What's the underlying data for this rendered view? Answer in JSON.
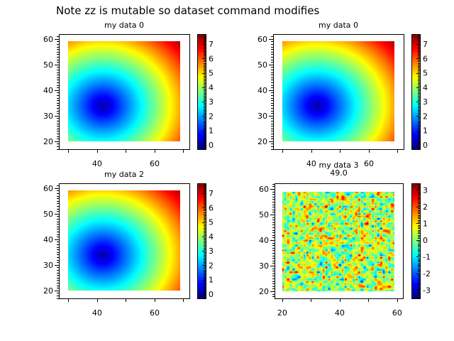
{
  "title": "Note zz is mutable so dataset command modifies",
  "chart_data": [
    {
      "type": "heatmap",
      "title": "my data 0",
      "xlim": [
        26.7,
        72.1
      ],
      "ylim": [
        16.9,
        61.9
      ],
      "x_extent": [
        30,
        69
      ],
      "y_extent": [
        20,
        59
      ],
      "x_ticks": [
        40,
        60
      ],
      "y_ticks": [
        20,
        30,
        40,
        50,
        60
      ],
      "colormap": "jet",
      "colorbar": {
        "range": [
          -0.3,
          7.7
        ],
        "ticks": [
          0,
          1,
          2,
          3,
          4,
          5,
          6,
          7
        ]
      },
      "field": {
        "kind": "radial distance",
        "center": [
          42,
          34
        ],
        "scale": 0.2
      }
    },
    {
      "type": "heatmap",
      "title": "my data 0",
      "xlim": [
        26.7,
        72.1
      ],
      "ylim": [
        16.9,
        61.9
      ],
      "x_extent": [
        30,
        69
      ],
      "y_extent": [
        20,
        59
      ],
      "x_ticks": [
        40,
        60
      ],
      "y_ticks": [
        20,
        30,
        40,
        50,
        60
      ],
      "colormap": "jet",
      "colorbar": {
        "range": [
          -0.3,
          7.7
        ],
        "ticks": [
          0,
          1,
          2,
          3,
          4,
          5,
          6,
          7
        ]
      },
      "field": {
        "kind": "radial distance",
        "center": [
          42,
          34
        ],
        "scale": 0.2
      }
    },
    {
      "type": "heatmap",
      "title": "my data 2",
      "xlim": [
        26.7,
        72.1
      ],
      "ylim": [
        16.9,
        61.9
      ],
      "x_extent": [
        30,
        69
      ],
      "y_extent": [
        20,
        59
      ],
      "x_ticks": [
        40,
        60
      ],
      "y_ticks": [
        20,
        30,
        40,
        50,
        60
      ],
      "colormap": "jet",
      "colorbar": {
        "range": [
          -0.3,
          7.7
        ],
        "ticks": [
          0,
          1,
          2,
          3,
          4,
          5,
          6,
          7
        ]
      },
      "field": {
        "kind": "radial distance",
        "center": [
          42,
          34
        ],
        "scale": 0.2
      }
    },
    {
      "type": "heatmap",
      "title": "my data 3",
      "subtitle": "49.0",
      "xlim": [
        17.3,
        62
      ],
      "ylim": [
        17.2,
        62.2
      ],
      "x_extent": [
        20,
        59
      ],
      "y_extent": [
        20,
        59
      ],
      "x_ticks": [
        20,
        40,
        60
      ],
      "y_ticks": [
        20,
        30,
        40,
        50,
        60
      ],
      "colormap": "jet",
      "colorbar": {
        "range": [
          -3.5,
          3.4
        ],
        "ticks": [
          -3,
          -2,
          -1,
          0,
          1,
          2,
          3
        ]
      },
      "field": {
        "kind": "random noise",
        "mean": 0.3
      }
    }
  ]
}
